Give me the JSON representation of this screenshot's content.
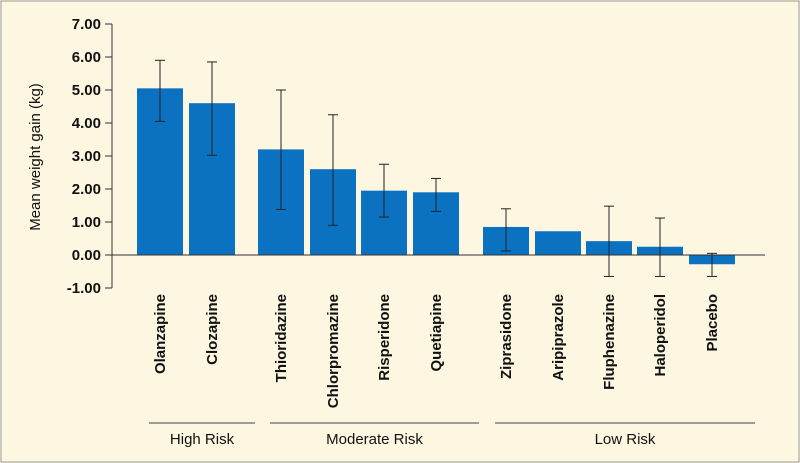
{
  "chart_data": {
    "type": "bar",
    "title": "",
    "xlabel": "",
    "ylabel": "Mean weight gain (kg)",
    "ylim": [
      -1.0,
      7.0
    ],
    "yticks": [
      -1.0,
      0.0,
      1.0,
      2.0,
      3.0,
      4.0,
      5.0,
      6.0,
      7.0
    ],
    "ytick_labels": [
      "-1.00",
      "0.00",
      "1.00",
      "2.00",
      "3.00",
      "4.00",
      "5.00",
      "6.00",
      "7.00"
    ],
    "grid": false,
    "bar_color": "#0a72c0",
    "categories": [
      "Olanzapine",
      "Clozapine",
      "Thioridazine",
      "Chlorpromazine",
      "Risperidone",
      "Quetiapine",
      "Ziprasidone",
      "Aripiprazole",
      "Fluphenazine",
      "Haloperidol",
      "Placebo"
    ],
    "values": [
      5.05,
      4.6,
      3.2,
      2.6,
      1.95,
      1.9,
      0.85,
      0.72,
      0.42,
      0.25,
      -0.28
    ],
    "error_upper": [
      5.9,
      5.85,
      5.0,
      4.25,
      2.75,
      2.32,
      1.4,
      null,
      1.48,
      1.12,
      0.05
    ],
    "error_lower": [
      4.05,
      3.02,
      1.38,
      0.9,
      1.15,
      1.32,
      0.12,
      null,
      -0.65,
      -0.65,
      -0.65
    ],
    "groups": [
      {
        "label": "High Risk",
        "start": 0,
        "end": 1
      },
      {
        "label": "Moderate Risk",
        "start": 2,
        "end": 5
      },
      {
        "label": "Low Risk",
        "start": 6,
        "end": 10
      }
    ]
  }
}
